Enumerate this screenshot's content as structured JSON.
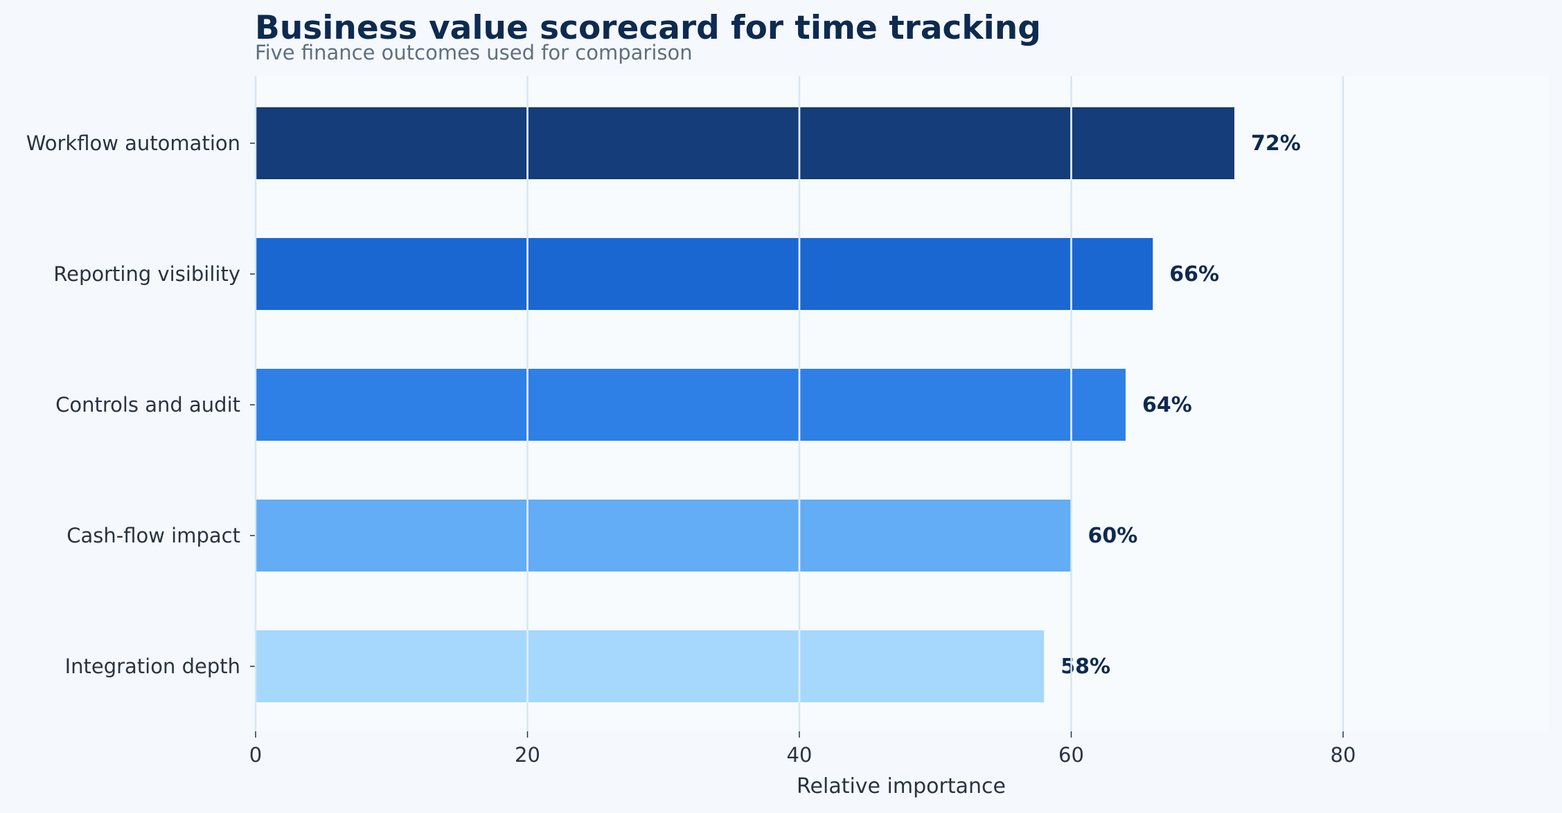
{
  "chart_data": {
    "type": "bar",
    "orientation": "horizontal",
    "title": "Business value scorecard for time tracking",
    "subtitle": "Five finance outcomes used for comparison",
    "xlabel": "Relative importance",
    "ylabel": "",
    "categories": [
      "Workflow automation",
      "Reporting visibility",
      "Controls and audit",
      "Cash-flow impact",
      "Integration depth"
    ],
    "values": [
      72,
      66,
      64,
      60,
      58
    ],
    "value_labels": [
      "72%",
      "66%",
      "64%",
      "60%",
      "58%"
    ],
    "bar_colors": [
      "#143d79",
      "#1b67d2",
      "#2f80e6",
      "#63acf6",
      "#a6d8fe"
    ],
    "xlim": [
      0,
      95
    ],
    "xticks": [
      0,
      20,
      40,
      60,
      80
    ],
    "grid": "vertical",
    "legend": "none"
  },
  "colors": {
    "page_background": "#f5f9fd",
    "plot_background": "#f7fbfe",
    "title": "#0e2a4f",
    "subtitle": "#5f6f80",
    "tick_text": "#2a3340",
    "value_label": "#0e2a4f",
    "grid": "#d5e8ee",
    "axis": "#2a3340"
  }
}
